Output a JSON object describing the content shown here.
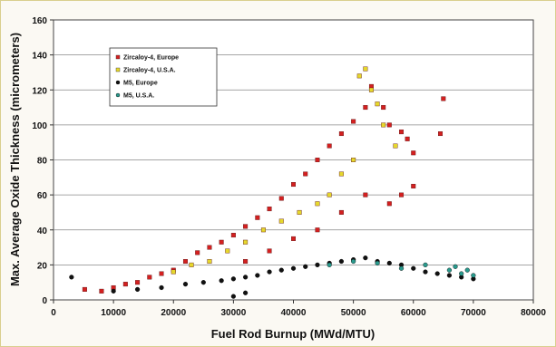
{
  "chart_data": {
    "type": "scatter",
    "title": "",
    "xlabel": "Fuel Rod Burnup (MWd/MTU)",
    "ylabel": "Max. Average Oxide Thickness (micrometers)",
    "xlim": [
      0,
      80000
    ],
    "ylim": [
      0,
      160
    ],
    "x_ticks": [
      "0",
      "10000",
      "20000",
      "30000",
      "40000",
      "50000",
      "60000",
      "70000",
      "80000"
    ],
    "y_ticks": [
      "0",
      "20",
      "40",
      "60",
      "80",
      "100",
      "120",
      "140",
      "160"
    ],
    "grid": "horizontal",
    "legend_position": "top-left",
    "series": [
      {
        "name": "Zircaloy-4, Europe",
        "color": "#d42020",
        "marker": "square",
        "points": [
          [
            5200,
            6
          ],
          [
            8000,
            5
          ],
          [
            10000,
            7
          ],
          [
            12000,
            9
          ],
          [
            14000,
            10
          ],
          [
            16000,
            13
          ],
          [
            18000,
            15
          ],
          [
            20000,
            17
          ],
          [
            22000,
            22
          ],
          [
            24000,
            27
          ],
          [
            26000,
            30
          ],
          [
            28000,
            33
          ],
          [
            30000,
            37
          ],
          [
            32000,
            42
          ],
          [
            34000,
            47
          ],
          [
            36000,
            52
          ],
          [
            38000,
            58
          ],
          [
            40000,
            66
          ],
          [
            42000,
            72
          ],
          [
            44000,
            80
          ],
          [
            46000,
            88
          ],
          [
            48000,
            95
          ],
          [
            50000,
            102
          ],
          [
            52000,
            110
          ],
          [
            53000,
            122
          ],
          [
            55000,
            110
          ],
          [
            56000,
            100
          ],
          [
            58000,
            96
          ],
          [
            59000,
            92
          ],
          [
            60000,
            84
          ],
          [
            64500,
            95
          ],
          [
            65000,
            115
          ],
          [
            44000,
            40
          ],
          [
            48000,
            50
          ],
          [
            52000,
            60
          ],
          [
            56000,
            55
          ],
          [
            58000,
            60
          ],
          [
            60000,
            65
          ],
          [
            40000,
            35
          ],
          [
            36000,
            28
          ],
          [
            32000,
            22
          ]
        ]
      },
      {
        "name": "Zircaloy-4, U.S.A.",
        "color": "#e6d82c",
        "marker": "square",
        "points": [
          [
            20000,
            16
          ],
          [
            23000,
            20
          ],
          [
            26000,
            22
          ],
          [
            29000,
            28
          ],
          [
            32000,
            33
          ],
          [
            35000,
            40
          ],
          [
            38000,
            45
          ],
          [
            41000,
            50
          ],
          [
            44000,
            55
          ],
          [
            46000,
            60
          ],
          [
            48000,
            72
          ],
          [
            50000,
            80
          ],
          [
            51000,
            128
          ],
          [
            52000,
            132
          ],
          [
            53000,
            120
          ],
          [
            54000,
            112
          ],
          [
            55000,
            100
          ],
          [
            57000,
            88
          ]
        ]
      },
      {
        "name": "M5, Europe",
        "color": "#111111",
        "marker": "circle",
        "points": [
          [
            3000,
            13
          ],
          [
            10000,
            5
          ],
          [
            14000,
            6
          ],
          [
            18000,
            7
          ],
          [
            22000,
            9
          ],
          [
            25000,
            10
          ],
          [
            28000,
            11
          ],
          [
            30000,
            12
          ],
          [
            32000,
            13
          ],
          [
            34000,
            14
          ],
          [
            36000,
            16
          ],
          [
            38000,
            17
          ],
          [
            40000,
            18
          ],
          [
            42000,
            19
          ],
          [
            44000,
            20
          ],
          [
            46000,
            21
          ],
          [
            48000,
            22
          ],
          [
            50000,
            23
          ],
          [
            52000,
            24
          ],
          [
            54000,
            22
          ],
          [
            56000,
            21
          ],
          [
            58000,
            20
          ],
          [
            60000,
            18
          ],
          [
            62000,
            16
          ],
          [
            64000,
            15
          ],
          [
            66000,
            14
          ],
          [
            68000,
            13
          ],
          [
            70000,
            12
          ],
          [
            30000,
            2
          ],
          [
            32000,
            4
          ]
        ]
      },
      {
        "name": "M5, U.S.A.",
        "color": "#2a9b8e",
        "marker": "circle",
        "points": [
          [
            46000,
            20
          ],
          [
            50000,
            22
          ],
          [
            54000,
            21
          ],
          [
            58000,
            18
          ],
          [
            62000,
            20
          ],
          [
            66000,
            17
          ],
          [
            67000,
            19
          ],
          [
            68000,
            15
          ],
          [
            69000,
            17
          ],
          [
            70000,
            14
          ]
        ]
      }
    ]
  }
}
